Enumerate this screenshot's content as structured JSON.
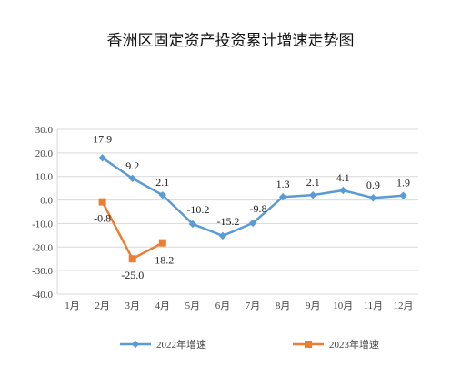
{
  "title": "香洲区固定资产投资累计增速走势图",
  "chart_data": {
    "type": "line",
    "categories": [
      "1月",
      "2月",
      "3月",
      "4月",
      "5月",
      "6月",
      "7月",
      "8月",
      "9月",
      "10月",
      "11月",
      "12月"
    ],
    "ylim": [
      -40,
      30
    ],
    "yticks": [
      "30.0",
      "20.0",
      "10.0",
      "0.0",
      "-10.0",
      "-20.0",
      "-30.0",
      "-40.0"
    ],
    "grid": true,
    "legend_position": "bottom",
    "series": [
      {
        "name": "2022年增速",
        "color": "#5b9bd5",
        "marker": "diamond",
        "values": [
          null,
          17.9,
          9.2,
          2.1,
          -10.2,
          -15.2,
          -9.8,
          1.3,
          2.1,
          4.1,
          0.9,
          1.9
        ],
        "labels": [
          null,
          "17.9",
          "9.2",
          "2.1",
          "-10.2",
          "-15.2",
          "-9.8",
          "1.3",
          "2.1",
          "4.1",
          "0.9",
          "1.9"
        ]
      },
      {
        "name": "2023年增速",
        "color": "#ed7d31",
        "marker": "square",
        "values": [
          null,
          -0.8,
          -25.0,
          -18.2,
          null,
          null,
          null,
          null,
          null,
          null,
          null,
          null
        ],
        "labels": [
          null,
          "-0.8",
          "-25.0",
          "-18.2",
          null,
          null,
          null,
          null,
          null,
          null,
          null,
          null
        ]
      }
    ]
  }
}
